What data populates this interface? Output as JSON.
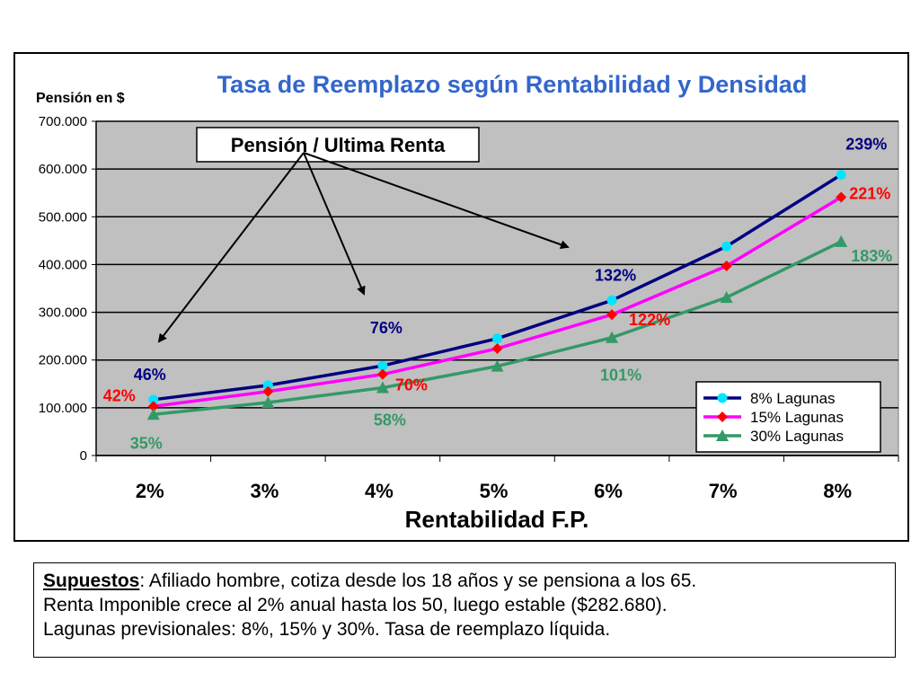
{
  "chart_data": {
    "type": "line",
    "title": "Tasa de Reemplazo según Rentabilidad y Densidad",
    "ylabel": "Pensión en $",
    "xlabel": "Rentabilidad F.P.",
    "categories": [
      "2%",
      "3%",
      "4%",
      "5%",
      "6%",
      "7%",
      "8%"
    ],
    "ylim": [
      0,
      700000
    ],
    "yticks": [
      "0",
      "100.000",
      "200.000",
      "300.000",
      "400.000",
      "500.000",
      "600.000",
      "700.000"
    ],
    "grid": true,
    "legend_position": "bottom-right",
    "series": [
      {
        "name": "8% Lagunas",
        "color": "#0000ff",
        "line_color": "#000080",
        "marker": "circle",
        "marker_color": "#00e5ff",
        "values": [
          117000,
          147000,
          188000,
          245000,
          325000,
          438000,
          588000
        ]
      },
      {
        "name": "15% Lagunas",
        "color": "#ff00ff",
        "line_color": "#ff00ff",
        "marker": "diamond",
        "marker_color": "#ff0000",
        "values": [
          103000,
          134000,
          170000,
          224000,
          295000,
          397000,
          541000
        ]
      },
      {
        "name": "30% Lagunas",
        "color": "#339966",
        "line_color": "#339966",
        "marker": "triangle",
        "marker_color": "#339966",
        "values": [
          86000,
          111000,
          142000,
          187000,
          247000,
          331000,
          448000
        ]
      }
    ],
    "annotations": [
      {
        "text": "46%",
        "category": "2%",
        "series": "8% Lagunas",
        "color": "#000080"
      },
      {
        "text": "42%",
        "category": "2%",
        "series": "15% Lagunas",
        "color": "#ff0000"
      },
      {
        "text": "35%",
        "category": "2%",
        "series": "30% Lagunas",
        "color": "#339966"
      },
      {
        "text": "76%",
        "category": "4%",
        "series": "8% Lagunas",
        "color": "#000080"
      },
      {
        "text": "70%",
        "category": "4%",
        "series": "15% Lagunas",
        "color": "#ff0000"
      },
      {
        "text": "58%",
        "category": "4%",
        "series": "30% Lagunas",
        "color": "#339966"
      },
      {
        "text": "132%",
        "category": "6%",
        "series": "8% Lagunas",
        "color": "#000080"
      },
      {
        "text": "122%",
        "category": "6%",
        "series": "15% Lagunas",
        "color": "#ff0000"
      },
      {
        "text": "101%",
        "category": "6%",
        "series": "30% Lagunas",
        "color": "#339966"
      },
      {
        "text": "239%",
        "category": "8%",
        "series": "8% Lagunas",
        "color": "#000080"
      },
      {
        "text": "221%",
        "category": "8%",
        "series": "15% Lagunas",
        "color": "#ff0000"
      },
      {
        "text": "183%",
        "category": "8%",
        "series": "30% Lagunas",
        "color": "#339966"
      }
    ],
    "callout": {
      "text": "Pensión / Ultima Renta"
    }
  },
  "notes": {
    "lead": "Supuestos",
    "line1": ": Afiliado hombre, cotiza desde los 18 años y se pensiona a los 65.",
    "line2": "Renta Imponible crece al 2% anual hasta los 50, luego estable ($282.680).",
    "line3": "Lagunas previsionales: 8%, 15% y 30%. Tasa de reemplazo líquida."
  }
}
